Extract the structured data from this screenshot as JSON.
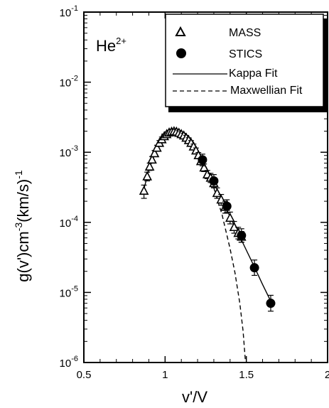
{
  "chart_data": {
    "type": "scatter",
    "xlabel": "v'/V",
    "ylabel_main": "g(v')cm",
    "ylabel_exp1": "-3",
    "ylabel_mid": "(km/s)",
    "ylabel_exp2": "-1",
    "panel_label": "He",
    "panel_label_sup": "2+",
    "xlim": [
      0.5,
      2.0
    ],
    "ylim": [
      1e-06,
      0.1
    ],
    "y_scale": "log",
    "x_ticks": [
      {
        "value": 0.5,
        "label": "0.5"
      },
      {
        "value": 1.0,
        "label": "1"
      },
      {
        "value": 1.5,
        "label": "1.5"
      },
      {
        "value": 2.0,
        "label": "2"
      }
    ],
    "y_ticks": [
      {
        "value": 0.1,
        "base": "10",
        "exp": "-1"
      },
      {
        "value": 0.01,
        "base": "10",
        "exp": "-2"
      },
      {
        "value": 0.001,
        "base": "10",
        "exp": "-3"
      },
      {
        "value": 0.0001,
        "base": "10",
        "exp": "-4"
      },
      {
        "value": 1e-05,
        "base": "10",
        "exp": "-5"
      },
      {
        "value": 1e-06,
        "base": "10",
        "exp": "-6"
      }
    ],
    "legend_position": "top-right",
    "series": [
      {
        "name": "MASS",
        "marker": "open-triangle",
        "points": [
          {
            "x": 0.87,
            "y": 0.00028,
            "lo": 0.00022,
            "hi": 0.00034
          },
          {
            "x": 0.89,
            "y": 0.00045,
            "lo": 0.00039,
            "hi": 0.00052
          },
          {
            "x": 0.905,
            "y": 0.00062,
            "lo": 0.00055,
            "hi": 0.0007
          },
          {
            "x": 0.92,
            "y": 0.00078,
            "lo": 0.0007,
            "hi": 0.00087
          },
          {
            "x": 0.935,
            "y": 0.00096,
            "lo": 0.00087,
            "hi": 0.00106
          },
          {
            "x": 0.95,
            "y": 0.00115,
            "lo": 0.00105,
            "hi": 0.00126
          },
          {
            "x": 0.965,
            "y": 0.00135,
            "lo": 0.00124,
            "hi": 0.00147
          },
          {
            "x": 0.98,
            "y": 0.00152,
            "lo": 0.0014,
            "hi": 0.00165
          },
          {
            "x": 0.995,
            "y": 0.00168,
            "lo": 0.00155,
            "hi": 0.00182
          },
          {
            "x": 1.01,
            "y": 0.0018,
            "lo": 0.00166,
            "hi": 0.00195
          },
          {
            "x": 1.025,
            "y": 0.0019,
            "lo": 0.00176,
            "hi": 0.00205
          },
          {
            "x": 1.04,
            "y": 0.00195,
            "lo": 0.0018,
            "hi": 0.0021
          },
          {
            "x": 1.055,
            "y": 0.00198,
            "lo": 0.00183,
            "hi": 0.00213
          },
          {
            "x": 1.07,
            "y": 0.00195,
            "lo": 0.0018,
            "hi": 0.0021
          },
          {
            "x": 1.085,
            "y": 0.00188,
            "lo": 0.00173,
            "hi": 0.00203
          },
          {
            "x": 1.1,
            "y": 0.0018,
            "lo": 0.00166,
            "hi": 0.00195
          },
          {
            "x": 1.115,
            "y": 0.00172,
            "lo": 0.00158,
            "hi": 0.00186
          },
          {
            "x": 1.13,
            "y": 0.0016,
            "lo": 0.00147,
            "hi": 0.00174
          },
          {
            "x": 1.145,
            "y": 0.00148,
            "lo": 0.00136,
            "hi": 0.00161
          },
          {
            "x": 1.16,
            "y": 0.00135,
            "lo": 0.00124,
            "hi": 0.00147
          },
          {
            "x": 1.175,
            "y": 0.0012,
            "lo": 0.0011,
            "hi": 0.00131
          },
          {
            "x": 1.19,
            "y": 0.00105,
            "lo": 0.00096,
            "hi": 0.00115
          },
          {
            "x": 1.205,
            "y": 0.0009,
            "lo": 0.00082,
            "hi": 0.00099
          },
          {
            "x": 1.22,
            "y": 0.00074,
            "lo": 0.00067,
            "hi": 0.00082
          },
          {
            "x": 1.24,
            "y": 0.0006,
            "lo": 0.00053,
            "hi": 0.00068
          },
          {
            "x": 1.26,
            "y": 0.00048,
            "lo": 0.00042,
            "hi": 0.00055
          },
          {
            "x": 1.28,
            "y": 0.00043,
            "lo": 0.00037,
            "hi": 0.0005
          },
          {
            "x": 1.3,
            "y": 0.00036,
            "lo": 0.00031,
            "hi": 0.00042
          },
          {
            "x": 1.32,
            "y": 0.00026,
            "lo": 0.00022,
            "hi": 0.00031
          },
          {
            "x": 1.345,
            "y": 0.00021,
            "lo": 0.000175,
            "hi": 0.00025
          },
          {
            "x": 1.37,
            "y": 0.000165,
            "lo": 0.000135,
            "hi": 0.0002
          },
          {
            "x": 1.4,
            "y": 0.000115,
            "lo": 9.5e-05,
            "hi": 0.00014
          },
          {
            "x": 1.425,
            "y": 8.5e-05,
            "lo": 7e-05,
            "hi": 0.000103
          },
          {
            "x": 1.45,
            "y": 7e-05,
            "lo": 5.8e-05,
            "hi": 8.5e-05
          },
          {
            "x": 1.47,
            "y": 6.2e-05,
            "lo": 5.2e-05,
            "hi": 7.4e-05
          }
        ]
      },
      {
        "name": "STICS",
        "marker": "filled-circle",
        "points": [
          {
            "x": 1.23,
            "y": 0.00078,
            "lo": 0.00064,
            "hi": 0.00094
          },
          {
            "x": 1.3,
            "y": 0.00039,
            "lo": 0.00032,
            "hi": 0.00048
          },
          {
            "x": 1.38,
            "y": 0.00017,
            "lo": 0.000138,
            "hi": 0.00021
          },
          {
            "x": 1.47,
            "y": 6.5e-05,
            "lo": 5.2e-05,
            "hi": 8.1e-05
          },
          {
            "x": 1.55,
            "y": 2.25e-05,
            "lo": 1.75e-05,
            "hi": 2.9e-05
          },
          {
            "x": 1.65,
            "y": 7e-06,
            "lo": 5.4e-06,
            "hi": 9.1e-06
          }
        ]
      },
      {
        "name": "Kappa Fit",
        "line_style": "solid",
        "points": [
          {
            "x": 0.87,
            "y": 0.0003
          },
          {
            "x": 0.9,
            "y": 0.00056
          },
          {
            "x": 0.95,
            "y": 0.00115
          },
          {
            "x": 1.0,
            "y": 0.0017
          },
          {
            "x": 1.05,
            "y": 0.00195
          },
          {
            "x": 1.1,
            "y": 0.00185
          },
          {
            "x": 1.15,
            "y": 0.00145
          },
          {
            "x": 1.2,
            "y": 0.001
          },
          {
            "x": 1.25,
            "y": 0.00063
          },
          {
            "x": 1.3,
            "y": 0.00037
          },
          {
            "x": 1.35,
            "y": 0.00021
          },
          {
            "x": 1.4,
            "y": 0.00012
          },
          {
            "x": 1.45,
            "y": 7e-05
          },
          {
            "x": 1.5,
            "y": 4e-05
          },
          {
            "x": 1.55,
            "y": 2.3e-05
          },
          {
            "x": 1.6,
            "y": 1.3e-05
          },
          {
            "x": 1.65,
            "y": 7.5e-06
          }
        ]
      },
      {
        "name": "Maxwellian Fit",
        "line_style": "dashed",
        "points": [
          {
            "x": 1.25,
            "y": 0.0006
          },
          {
            "x": 1.3,
            "y": 0.00031
          },
          {
            "x": 1.35,
            "y": 0.00013
          },
          {
            "x": 1.4,
            "y": 4.2e-05
          },
          {
            "x": 1.43,
            "y": 1.9e-05
          },
          {
            "x": 1.46,
            "y": 7e-06
          },
          {
            "x": 1.48,
            "y": 2.8e-06
          },
          {
            "x": 1.495,
            "y": 1e-06
          }
        ]
      }
    ]
  }
}
